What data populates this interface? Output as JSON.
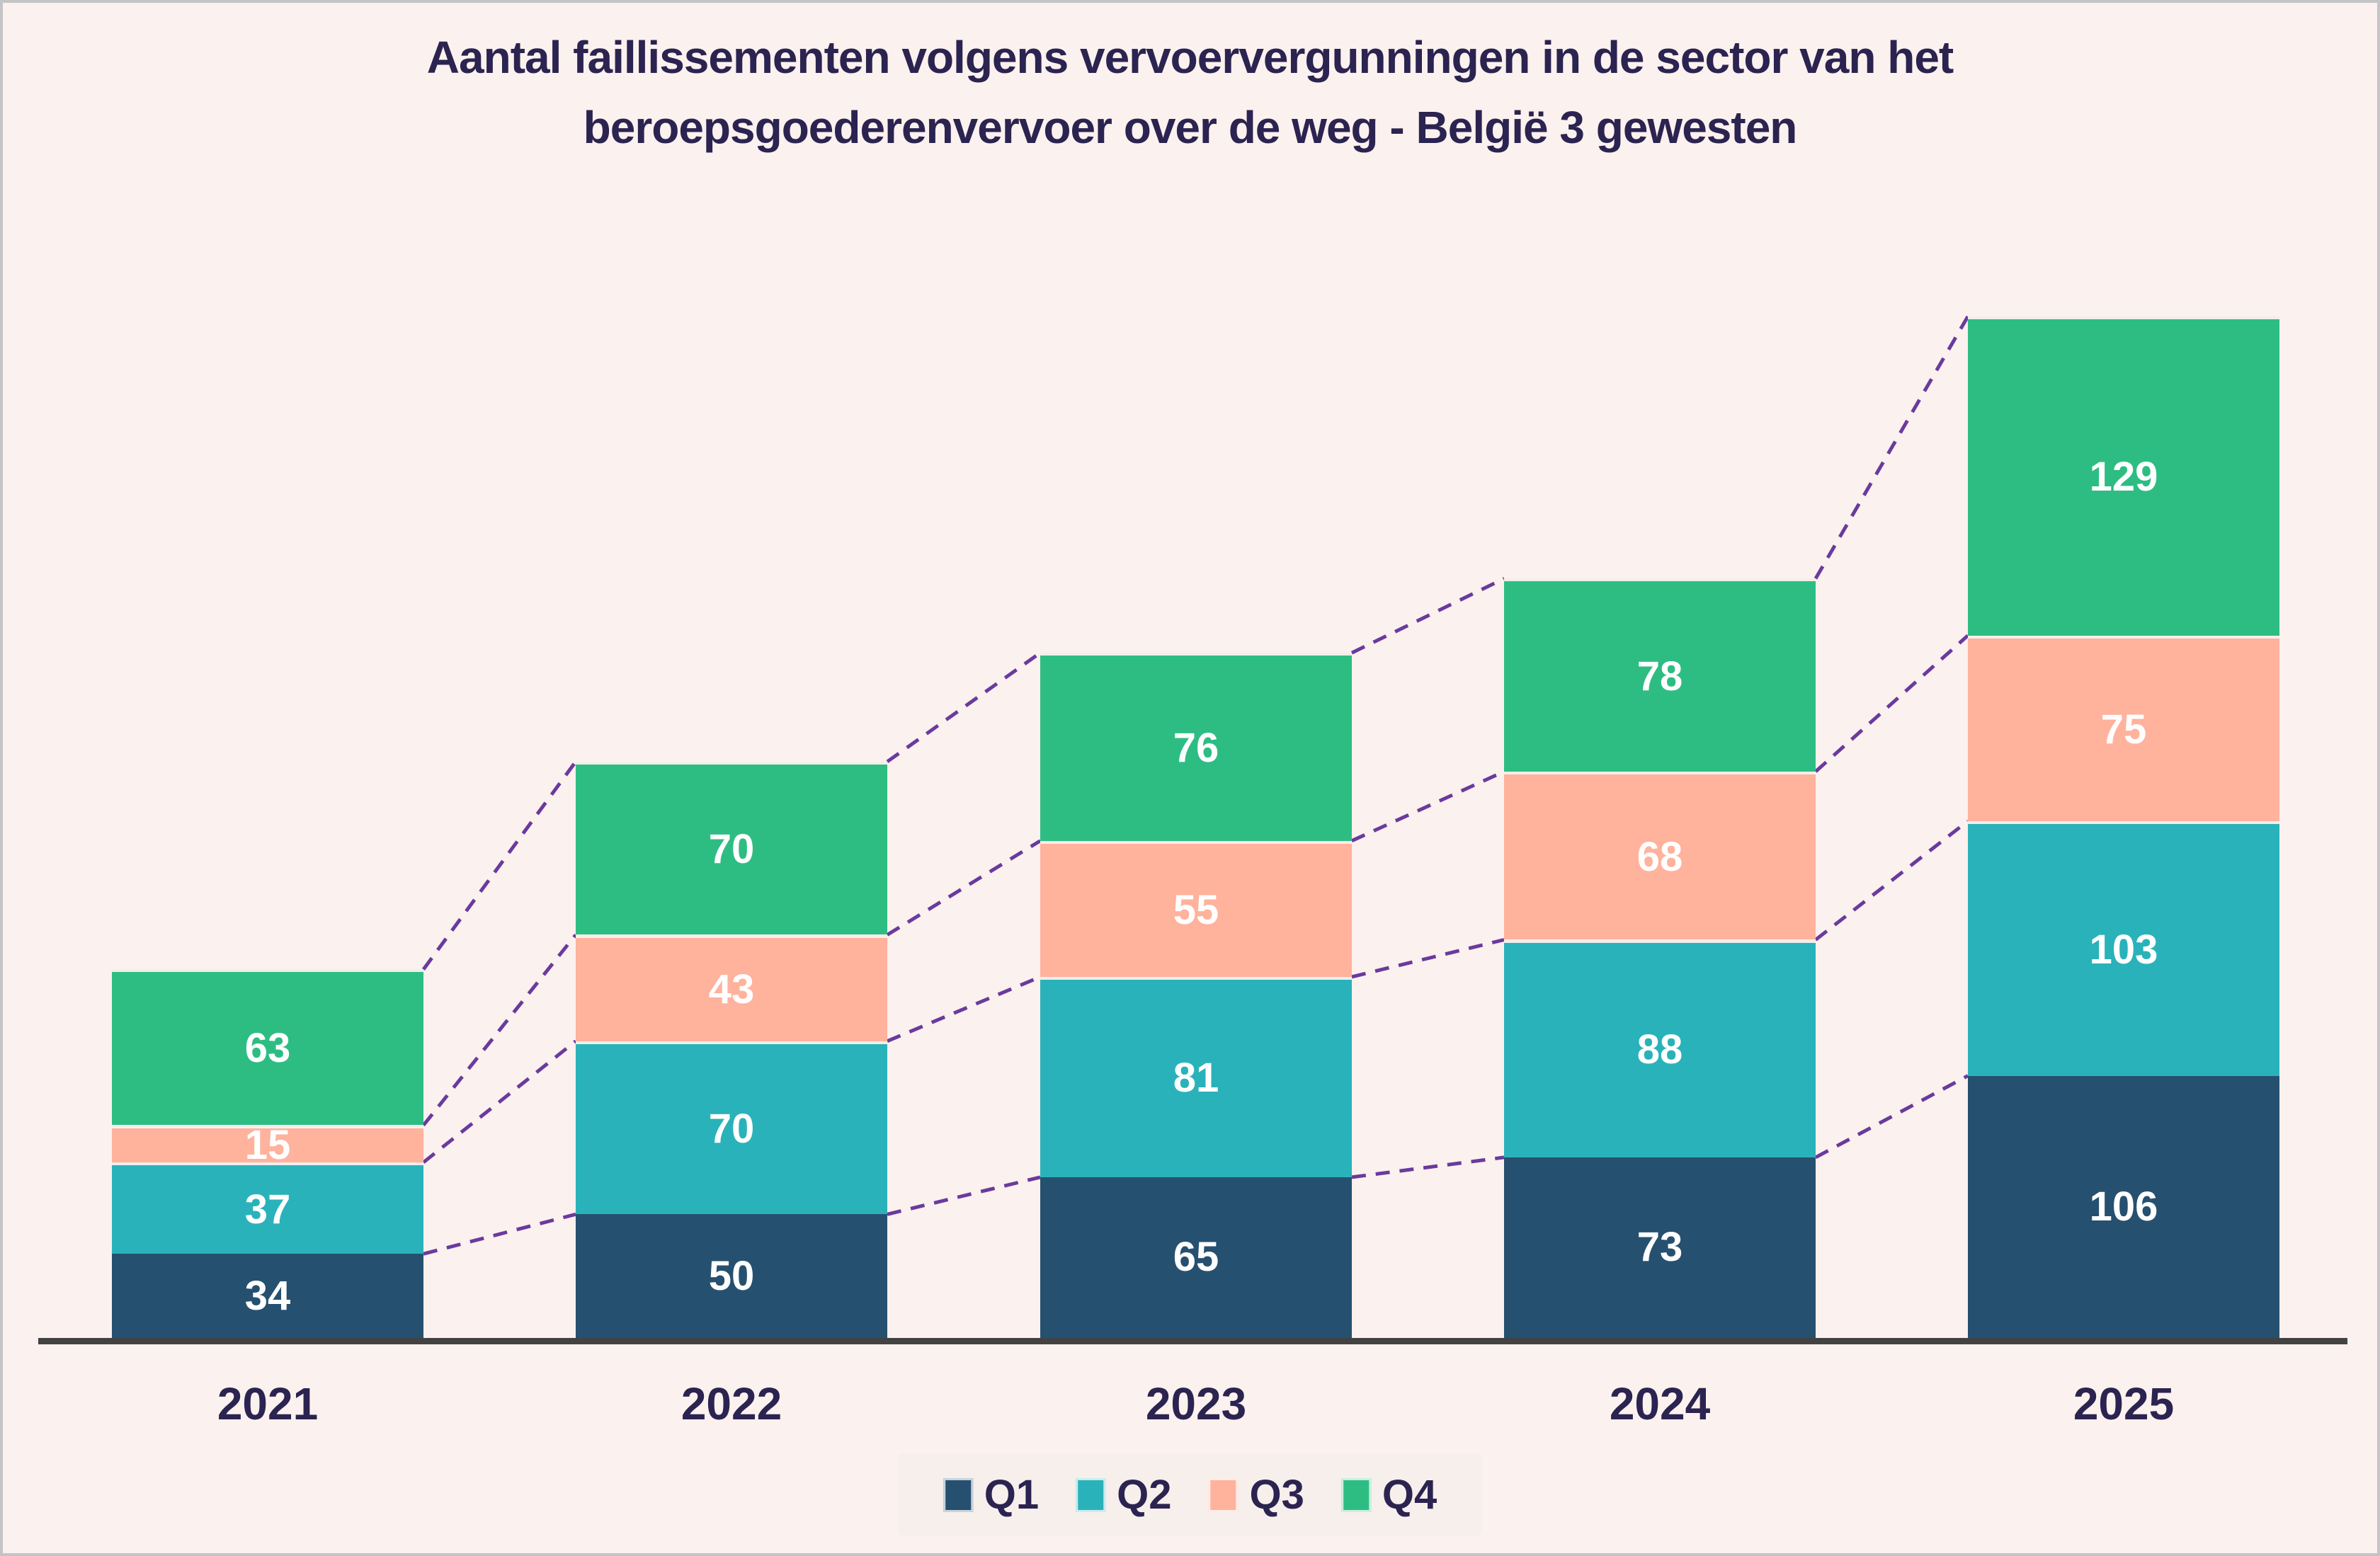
{
  "colors": {
    "background": "#fbf1ee",
    "title_text": "#2b2350",
    "axis_line": "#424242",
    "connector_dashed": "#6a3a9e",
    "legend_background": "#f7efeb",
    "value_label_text": "#ffffff",
    "q1": "#26506f",
    "q2": "#2ab2ba",
    "q3": "#ffb29c",
    "q4": "#2dbd83"
  },
  "chart_data": {
    "type": "bar",
    "stacked": true,
    "title": "Aantal faillissementen volgens vervoervergunningen in de sector van het beroepsgoederenvervoer over de weg - België 3 gewesten",
    "title_lines": [
      "Aantal faillissementen volgens vervoervergunningen in de sector van het",
      "beroepsgoederenvervoer over de weg - België 3 gewesten"
    ],
    "categories": [
      "2021",
      "2022",
      "2023",
      "2024",
      "2025"
    ],
    "series": [
      {
        "name": "Q1",
        "color": "#26506f",
        "values": [
          34,
          50,
          65,
          73,
          106
        ]
      },
      {
        "name": "Q2",
        "color": "#2ab2ba",
        "values": [
          37,
          70,
          81,
          88,
          103
        ]
      },
      {
        "name": "Q3",
        "color": "#ffb29c",
        "values": [
          15,
          43,
          55,
          68,
          75
        ]
      },
      {
        "name": "Q4",
        "color": "#2dbd83",
        "values": [
          63,
          70,
          76,
          78,
          129
        ]
      }
    ],
    "legend_labels": [
      "Q1",
      "Q2",
      "Q3",
      "Q4"
    ],
    "legend_position": "bottom",
    "value_labels_on_segments": true,
    "connectors": {
      "style": "dashed",
      "color": "#6a3a9e",
      "description": "dashed lines link cumulative stack boundaries between adjacent bars"
    },
    "xlabel": "",
    "ylabel": "",
    "y_axis_shown": false,
    "gridlines": false
  }
}
